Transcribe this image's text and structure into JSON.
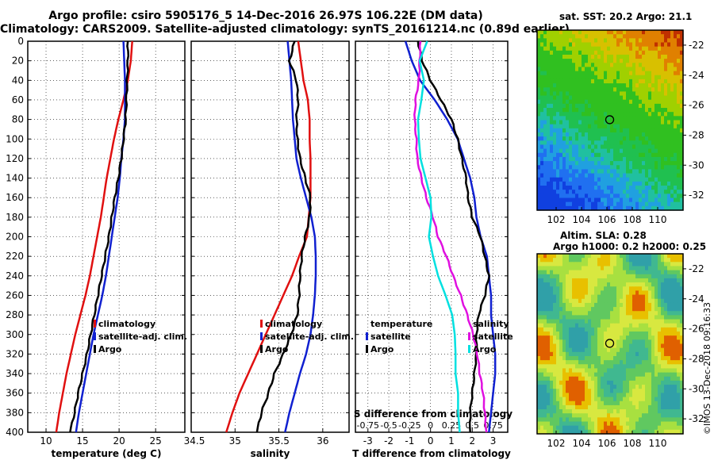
{
  "header": {
    "title_line1": "Argo profile: csiro 5905176_5 14-Dec-2016 26.97S 106.22E (DM data)",
    "title_line2": "Climatology: CARS2009. Satellite-adjusted climatology: synTS_20161214.nc (0.89d earlier)"
  },
  "colors": {
    "climatology": "#e01010",
    "satellite": "#1020d0",
    "argo": "#000000",
    "s_satellite": "#e010e0",
    "t_satellite": "#00e0e0"
  },
  "chart_data": [
    {
      "type": "line",
      "name": "temperature-panel",
      "xlabel": "temperature (deg C)",
      "xlim": [
        7.5,
        29
      ],
      "xticks": [
        10,
        15,
        20,
        25
      ],
      "ylim": [
        0,
        400
      ],
      "yticks": [
        0,
        20,
        40,
        60,
        80,
        100,
        120,
        140,
        160,
        180,
        200,
        220,
        240,
        260,
        280,
        300,
        320,
        340,
        360,
        380,
        400
      ],
      "legend": [
        "climatology",
        "satellite-adj. clim.",
        "Argo"
      ],
      "series": [
        {
          "name": "climatology",
          "depth": [
            0,
            20,
            40,
            60,
            80,
            100,
            120,
            140,
            160,
            180,
            200,
            220,
            240,
            260,
            280,
            300,
            320,
            340,
            360,
            380,
            400
          ],
          "values": [
            21.8,
            21.6,
            21.2,
            20.6,
            19.9,
            19.3,
            18.8,
            18.3,
            17.9,
            17.5,
            17.0,
            16.5,
            16.0,
            15.4,
            14.7,
            14.0,
            13.4,
            12.8,
            12.3,
            11.8,
            11.4
          ]
        },
        {
          "name": "satellite-adj. clim.",
          "depth": [
            0,
            20,
            40,
            60,
            80,
            100,
            120,
            140,
            160,
            180,
            200,
            220,
            240,
            260,
            280,
            300,
            320,
            340,
            360,
            380,
            400
          ],
          "values": [
            20.6,
            20.7,
            20.8,
            20.8,
            20.8,
            20.6,
            20.3,
            20.1,
            19.8,
            19.4,
            19.0,
            18.6,
            18.2,
            17.7,
            17.1,
            16.5,
            16.0,
            15.5,
            15.0,
            14.5,
            14.1
          ]
        },
        {
          "name": "Argo",
          "depth": [
            0,
            20,
            40,
            60,
            80,
            100,
            120,
            140,
            160,
            180,
            200,
            220,
            240,
            260,
            280,
            300,
            320,
            340,
            360,
            380,
            400
          ],
          "values": [
            21.2,
            21.2,
            21.1,
            21.0,
            20.9,
            20.6,
            20.3,
            19.9,
            19.4,
            19.0,
            18.6,
            18.1,
            17.6,
            17.1,
            16.6,
            16.1,
            15.6,
            15.0,
            14.4,
            13.9,
            13.3
          ]
        }
      ]
    },
    {
      "type": "line",
      "name": "salinity-panel",
      "xlabel": "salinity",
      "xlim": [
        34.5,
        36.3
      ],
      "xticks": [
        34.5,
        35,
        35.5,
        36
      ],
      "xtick_labels": [
        "34.5",
        "35",
        "35.5",
        "36"
      ],
      "ylim": [
        0,
        400
      ],
      "legend": [
        "climatology",
        "satellite-adj. clim.",
        "Argo"
      ],
      "series": [
        {
          "name": "climatology",
          "depth": [
            0,
            20,
            40,
            60,
            80,
            100,
            120,
            140,
            160,
            180,
            200,
            220,
            240,
            260,
            280,
            300,
            320,
            340,
            360,
            380,
            400
          ],
          "values": [
            35.72,
            35.75,
            35.78,
            35.83,
            35.85,
            35.85,
            35.86,
            35.86,
            35.86,
            35.84,
            35.82,
            35.73,
            35.65,
            35.55,
            35.45,
            35.35,
            35.25,
            35.15,
            35.05,
            34.97,
            34.9
          ]
        },
        {
          "name": "satellite-adj. clim.",
          "depth": [
            0,
            20,
            40,
            60,
            80,
            100,
            120,
            140,
            160,
            180,
            200,
            220,
            240,
            260,
            280,
            300,
            320,
            340,
            360,
            380,
            400
          ],
          "values": [
            35.6,
            35.62,
            35.64,
            35.65,
            35.66,
            35.68,
            35.7,
            35.75,
            35.81,
            35.87,
            35.91,
            35.92,
            35.92,
            35.91,
            35.89,
            35.86,
            35.81,
            35.74,
            35.68,
            35.62,
            35.57
          ]
        },
        {
          "name": "Argo",
          "depth": [
            0,
            20,
            40,
            60,
            80,
            100,
            120,
            140,
            160,
            180,
            200,
            220,
            240,
            260,
            280,
            300,
            320,
            340,
            360,
            380,
            400
          ],
          "values": [
            35.68,
            35.62,
            35.7,
            35.72,
            35.7,
            35.71,
            35.74,
            35.8,
            35.86,
            35.85,
            35.8,
            35.76,
            35.74,
            35.73,
            35.71,
            35.64,
            35.55,
            35.45,
            35.38,
            35.3,
            35.25
          ]
        }
      ]
    },
    {
      "type": "line",
      "name": "difference-panel",
      "xlabel": "T difference from climatology",
      "x2label": "S difference from climatology",
      "xlim": [
        -3.6,
        3.7
      ],
      "xticks": [
        -3,
        -2,
        -1,
        0,
        1,
        2,
        3
      ],
      "s_xticks": [
        -0.75,
        -0.5,
        -0.25,
        0,
        0.25,
        0.5,
        0.75
      ],
      "s_xtick_labels": [
        "-0.75",
        "-0.5",
        "-0.25",
        "0",
        "0.25",
        "0.5",
        "0.75"
      ],
      "ylim": [
        0,
        400
      ],
      "legend_left": [
        "temperature",
        "satellite",
        "Argo"
      ],
      "legend_right": [
        "salinity",
        "satellite",
        "Argo"
      ],
      "series": [
        {
          "name": "T satellite",
          "depth": [
            0,
            20,
            40,
            60,
            80,
            100,
            120,
            140,
            160,
            180,
            200,
            220,
            240,
            260,
            280,
            300,
            320,
            340,
            360,
            380,
            400
          ],
          "values": [
            -1.2,
            -0.9,
            -0.5,
            0.2,
            0.8,
            1.3,
            1.6,
            1.9,
            2.1,
            2.2,
            2.4,
            2.7,
            2.8,
            2.9,
            2.9,
            3.0,
            3.1,
            3.1,
            3.0,
            2.9,
            2.8
          ]
        },
        {
          "name": "T Argo",
          "depth": [
            0,
            20,
            40,
            60,
            80,
            100,
            120,
            140,
            160,
            180,
            200,
            220,
            240,
            260,
            280,
            300,
            320,
            340,
            360,
            380,
            400
          ],
          "values": [
            -0.6,
            -0.4,
            0.0,
            0.5,
            1.0,
            1.3,
            1.5,
            1.7,
            1.8,
            2.0,
            2.4,
            2.6,
            2.8,
            2.6,
            2.3,
            2.2,
            2.2,
            2.1,
            2.0,
            1.9,
            1.9
          ]
        },
        {
          "name": "S satellite",
          "depth": [
            0,
            20,
            40,
            60,
            80,
            100,
            120,
            140,
            160,
            180,
            200,
            220,
            240,
            260,
            280,
            300,
            320,
            340,
            360,
            380,
            400
          ],
          "values": [
            -0.12,
            -0.13,
            -0.14,
            -0.18,
            -0.19,
            -0.17,
            -0.16,
            -0.11,
            -0.05,
            0.03,
            0.09,
            0.19,
            0.27,
            0.36,
            0.44,
            0.51,
            0.56,
            0.59,
            0.63,
            0.65,
            0.67
          ]
        },
        {
          "name": "S Argo",
          "depth": [
            0,
            20,
            40,
            60,
            80,
            100,
            120,
            140,
            160,
            180,
            200,
            220,
            240,
            260,
            280,
            300,
            320,
            340,
            360,
            380,
            400
          ],
          "values": [
            -0.04,
            -0.13,
            -0.08,
            -0.11,
            -0.15,
            -0.14,
            -0.12,
            -0.06,
            0.0,
            0.01,
            -0.02,
            0.03,
            0.09,
            0.18,
            0.26,
            0.29,
            0.3,
            0.3,
            0.33,
            0.33,
            0.35
          ]
        }
      ]
    },
    {
      "type": "heatmap",
      "name": "sst-map",
      "title": "sat. SST: 20.2 Argo: 21.1",
      "xticks": [
        102,
        104,
        106,
        108,
        110
      ],
      "yticks": [
        -22,
        -24,
        -26,
        -28,
        -30,
        -32
      ],
      "xlim": [
        100.5,
        112
      ],
      "ylim": [
        -33,
        -21
      ],
      "marker": {
        "lon": 106.22,
        "lat": -26.97
      }
    },
    {
      "type": "heatmap",
      "name": "sla-map",
      "title_line1": "Altim. SLA: 0.28",
      "title_line2": "Argo h1000: 0.2 h2000: 0.25",
      "xticks": [
        102,
        104,
        106,
        108,
        110
      ],
      "yticks": [
        -22,
        -24,
        -26,
        -28,
        -30,
        -32
      ],
      "xlim": [
        100.5,
        112
      ],
      "ylim": [
        -33,
        -21
      ],
      "marker": {
        "lon": 106.22,
        "lat": -26.97
      }
    }
  ],
  "footer": {
    "credit": "©IMOS 13-Dec-2018 09:16:33"
  }
}
